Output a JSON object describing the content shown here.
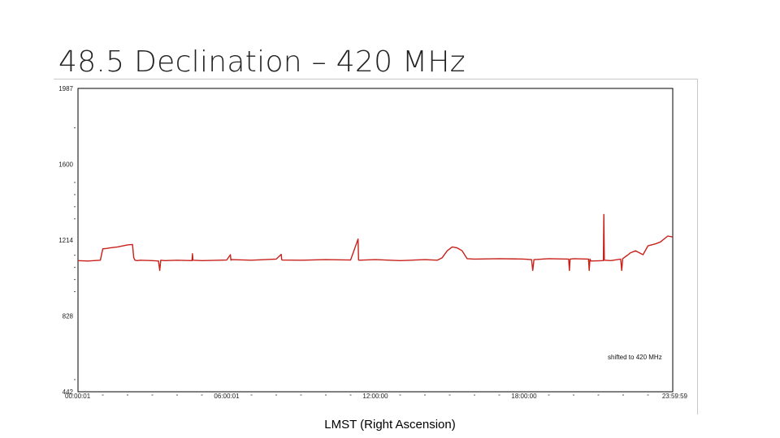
{
  "slide": {
    "title": "48.5 Declination – 420 MHz",
    "xlabel": "LMST (Right Ascension)"
  },
  "chart_data": {
    "type": "line",
    "title": "48.5 Declination – 420 MHz",
    "xlabel": "LMST (Right Ascension)",
    "ylabel": "",
    "xlim": [
      0,
      24
    ],
    "ylim": [
      442,
      1987
    ],
    "x_ticks": [
      {
        "value": 0.0,
        "label": "00:00:01"
      },
      {
        "value": 6.0,
        "label": "06:00:01"
      },
      {
        "value": 12.0,
        "label": "12:00:00"
      },
      {
        "value": 18.0,
        "label": "18:00:00"
      },
      {
        "value": 24.0,
        "label": "23:59:59"
      }
    ],
    "y_ticks": [
      {
        "value": 1987,
        "label": "1987"
      },
      {
        "value": 1600,
        "label": "1600"
      },
      {
        "value": 1214,
        "label": "1214"
      },
      {
        "value": 828,
        "label": "828"
      },
      {
        "value": 442,
        "label": "442"
      }
    ],
    "annotation": "shifted to 420 MHz",
    "grid": false,
    "color": "#c8201a",
    "series": [
      {
        "x": [
          0.0,
          0.4,
          0.9,
          1.0,
          1.15,
          1.3,
          1.6,
          2.0,
          2.2,
          2.25,
          2.3,
          2.4,
          2.5,
          3.0,
          3.25,
          3.3,
          3.34,
          3.5,
          4.0,
          4.6,
          4.62,
          4.64,
          5.0,
          6.0,
          6.15,
          6.17,
          6.19,
          7.0,
          8.0,
          8.2,
          8.22,
          8.24,
          9.0,
          10.0,
          11.0,
          11.3,
          11.32,
          11.34,
          12.0,
          13.0,
          14.0,
          14.5,
          14.7,
          14.9,
          15.1,
          15.3,
          15.5,
          15.7,
          16.0,
          17.0,
          18.0,
          18.3,
          18.35,
          18.4,
          19.0,
          19.8,
          19.83,
          19.86,
          20.0,
          20.6,
          20.63,
          20.66,
          20.7,
          21.2,
          21.22,
          21.24,
          21.5,
          21.9,
          21.94,
          21.98,
          22.2,
          22.3,
          22.5,
          22.8,
          23.0,
          23.3,
          23.5,
          23.8,
          24.0
        ],
        "values": [
          1110,
          1108,
          1112,
          1170,
          1172,
          1175,
          1180,
          1190,
          1192,
          1125,
          1112,
          1110,
          1112,
          1110,
          1108,
          1060,
          1112,
          1110,
          1112,
          1110,
          1145,
          1112,
          1110,
          1113,
          1140,
          1112,
          1115,
          1112,
          1118,
          1142,
          1115,
          1113,
          1112,
          1115,
          1113,
          1220,
          1114,
          1112,
          1115,
          1110,
          1115,
          1112,
          1125,
          1160,
          1180,
          1175,
          1160,
          1120,
          1118,
          1120,
          1118,
          1115,
          1060,
          1115,
          1120,
          1118,
          1060,
          1118,
          1120,
          1118,
          1060,
          1118,
          1108,
          1110,
          1345,
          1112,
          1110,
          1118,
          1060,
          1120,
          1140,
          1150,
          1160,
          1140,
          1185,
          1195,
          1205,
          1235,
          1230
        ]
      }
    ]
  }
}
